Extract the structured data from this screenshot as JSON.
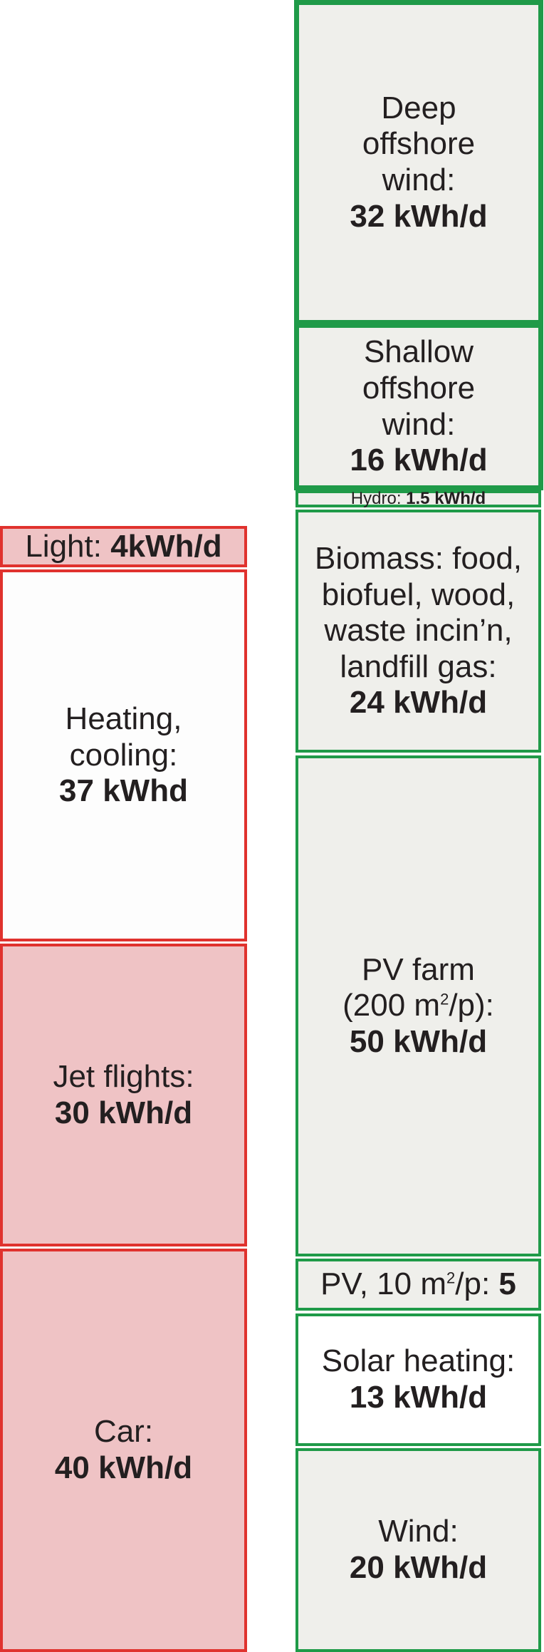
{
  "demand": {
    "light": {
      "label": "Light: ",
      "value": "4kWh/d"
    },
    "heating": {
      "lines": [
        "Heating,",
        "cooling:"
      ],
      "value": "37 kWhd"
    },
    "jet": {
      "lines": [
        "Jet flights:"
      ],
      "value": "30 kWh/d"
    },
    "car": {
      "lines": [
        "Car:"
      ],
      "value": "40 kWh/d"
    }
  },
  "supply": {
    "deep_offshore": {
      "lines": [
        "Deep",
        "offshore",
        "wind:"
      ],
      "value": "32 kWh/d"
    },
    "shallow_offshore": {
      "lines": [
        "Shallow",
        "offshore",
        "wind:"
      ],
      "value": "16 kWh/d"
    },
    "hydro": {
      "label": "Hydro: ",
      "value": "1.5 kWh/d"
    },
    "biomass": {
      "lines": [
        "Biomass: food,",
        "biofuel, wood,",
        "waste incin’n,",
        "landfill gas:"
      ],
      "value": "24 kWh/d"
    },
    "pv_farm": {
      "line1": "PV farm",
      "line2_pre": "(200 m",
      "line2_sup": "2",
      "line2_post": "/p):",
      "value": "50 kWh/d"
    },
    "pv_small": {
      "pre": "PV, 10 m",
      "sup": "2",
      "post": "/p: ",
      "value": "5"
    },
    "solar_heating": {
      "lines": [
        "Solar heating:"
      ],
      "value": "13 kWh/d"
    },
    "wind": {
      "lines": [
        "Wind:"
      ],
      "value": "20 kWh/d"
    }
  },
  "colors": {
    "demand_border": "#e0322e",
    "demand_fill": "#efc3c5",
    "supply_border": "#1f9a48",
    "supply_fill": "#efefeb"
  }
}
